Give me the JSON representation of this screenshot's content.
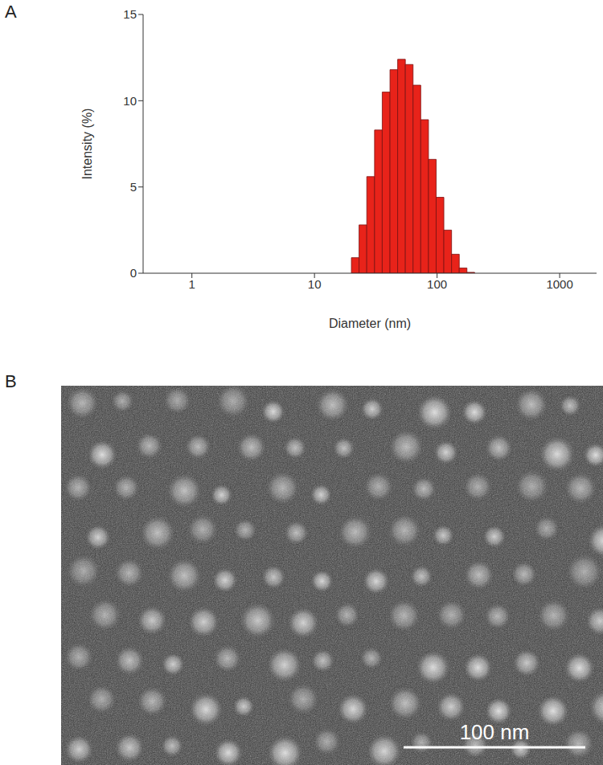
{
  "chart_data": {
    "type": "histogram",
    "panel_label": "A",
    "xlabel": "Diameter (nm)",
    "ylabel": "Intensity (%)",
    "bins": [
      20,
      23.1,
      26.7,
      30.9,
      35.7,
      41.3,
      47.7,
      55.1,
      63.7,
      73.6,
      85.1,
      98.3,
      113.6,
      131.3,
      151.7,
      175.3,
      202.6
    ],
    "values": [
      0.9,
      2.8,
      5.6,
      8.3,
      10.5,
      11.8,
      12.4,
      12.1,
      10.9,
      8.9,
      6.6,
      4.4,
      2.5,
      1.1,
      0.3,
      0.05
    ],
    "color": "#e8231a",
    "log": "x",
    "grid": false,
    "xlim": [
      0.4,
      2000
    ],
    "xticks": [
      1,
      10,
      100,
      1000
    ],
    "ylim": [
      0,
      15
    ],
    "yticks": [
      0,
      5,
      10,
      15
    ]
  },
  "image": {
    "panel_label": "B",
    "scale_bar_label": "100 nm"
  }
}
